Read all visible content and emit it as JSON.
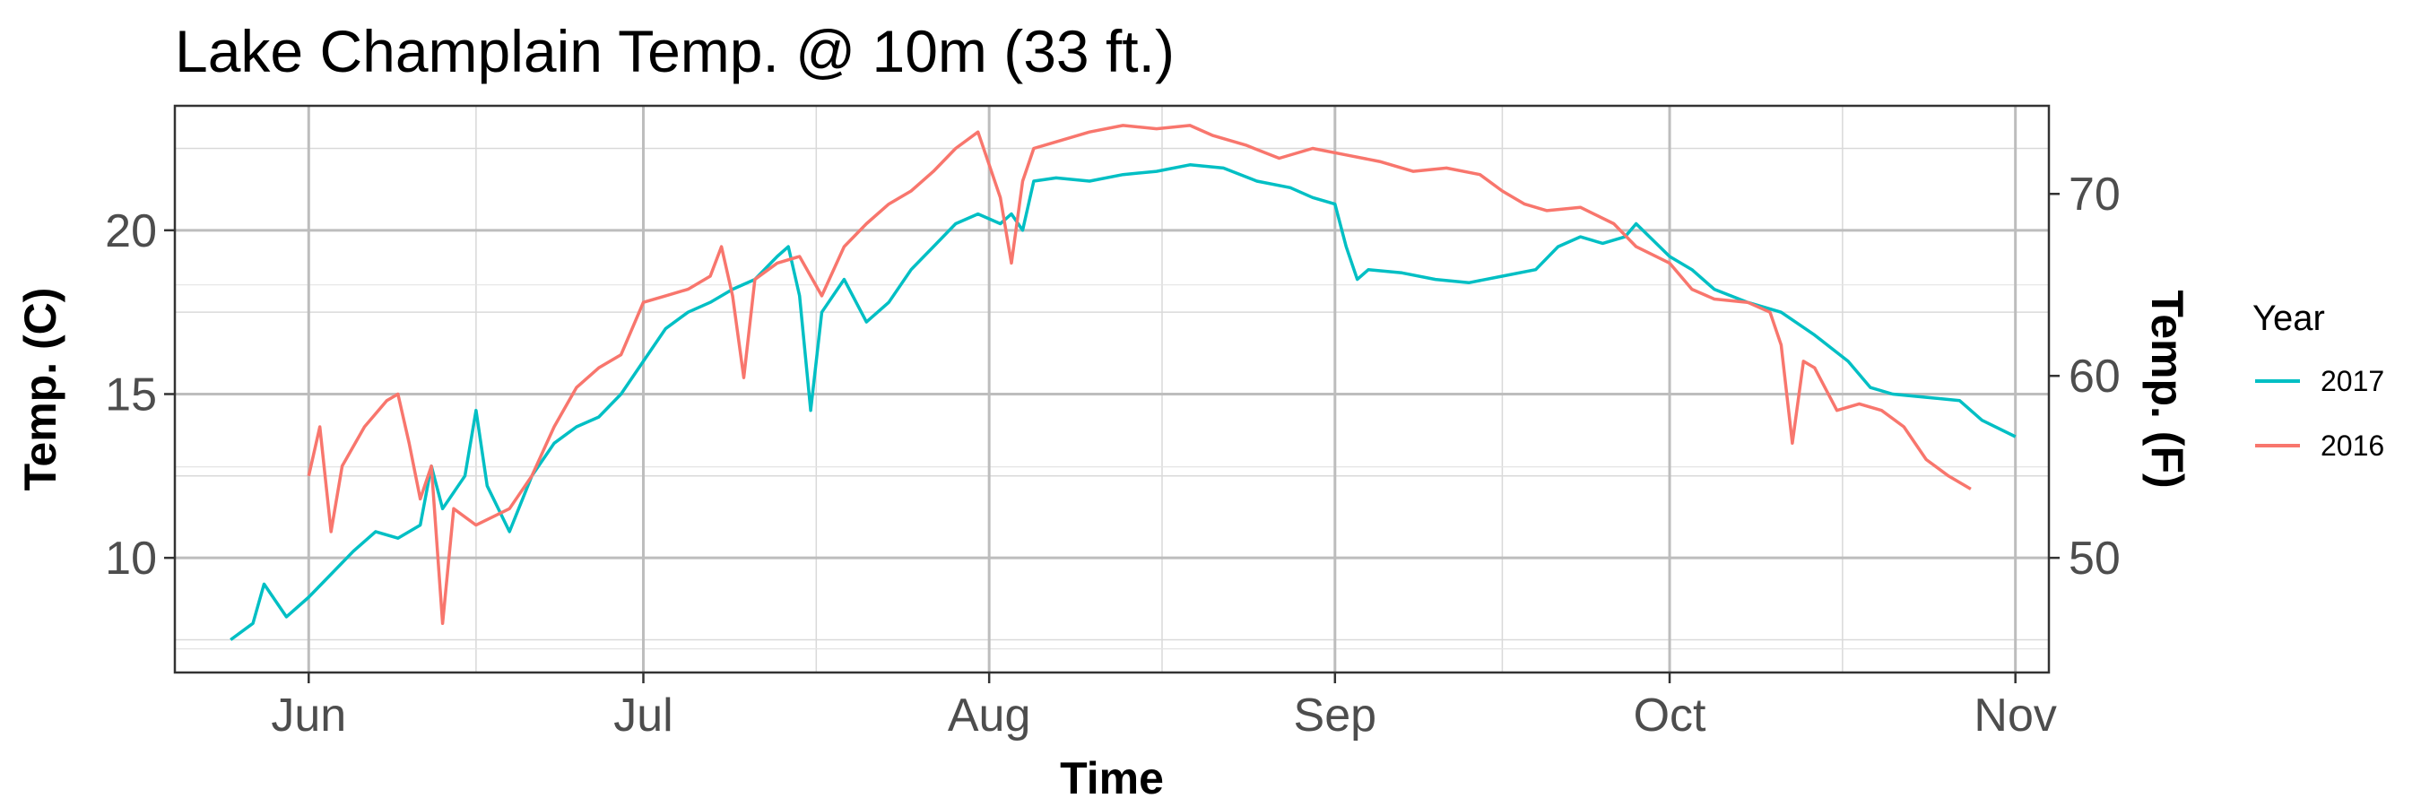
{
  "chart_data": {
    "type": "line",
    "title": "Lake Champlain Temp. @ 10m (33 ft.)",
    "xlabel": "Time",
    "ylabel": "Temp. (C)",
    "y2label": "Temp. (F)",
    "xlim": [
      "2017-05-20",
      "2017-11-04"
    ],
    "ylim": [
      6.5,
      23.8
    ],
    "y2_ticks": [
      50,
      60,
      70
    ],
    "x_ticks": [
      {
        "date": "2017-06-01",
        "label": "Jun"
      },
      {
        "date": "2017-07-01",
        "label": "Jul"
      },
      {
        "date": "2017-08-01",
        "label": "Aug"
      },
      {
        "date": "2017-09-01",
        "label": "Sep"
      },
      {
        "date": "2017-10-01",
        "label": "Oct"
      },
      {
        "date": "2017-11-01",
        "label": "Nov"
      }
    ],
    "y_ticks": [
      10,
      15,
      20
    ],
    "grid": true,
    "legend": {
      "title": "Year",
      "position": "right"
    },
    "series": [
      {
        "name": "2017",
        "color": "#00BFC4",
        "points": [
          [
            "2017-05-25",
            7.5
          ],
          [
            "2017-05-27",
            8.0
          ],
          [
            "2017-05-28",
            9.2
          ],
          [
            "2017-05-30",
            8.2
          ],
          [
            "2017-06-01",
            8.8
          ],
          [
            "2017-06-03",
            9.5
          ],
          [
            "2017-06-05",
            10.2
          ],
          [
            "2017-06-07",
            10.8
          ],
          [
            "2017-06-09",
            10.6
          ],
          [
            "2017-06-11",
            11.0
          ],
          [
            "2017-06-12",
            12.8
          ],
          [
            "2017-06-13",
            11.5
          ],
          [
            "2017-06-15",
            12.5
          ],
          [
            "2017-06-16",
            14.5
          ],
          [
            "2017-06-17",
            12.2
          ],
          [
            "2017-06-19",
            10.8
          ],
          [
            "2017-06-21",
            12.5
          ],
          [
            "2017-06-23",
            13.5
          ],
          [
            "2017-06-25",
            14.0
          ],
          [
            "2017-06-27",
            14.3
          ],
          [
            "2017-06-29",
            15.0
          ],
          [
            "2017-07-01",
            16.0
          ],
          [
            "2017-07-03",
            17.0
          ],
          [
            "2017-07-05",
            17.5
          ],
          [
            "2017-07-07",
            17.8
          ],
          [
            "2017-07-09",
            18.2
          ],
          [
            "2017-07-11",
            18.5
          ],
          [
            "2017-07-13",
            19.2
          ],
          [
            "2017-07-14",
            19.5
          ],
          [
            "2017-07-15",
            18.0
          ],
          [
            "2017-07-16",
            14.5
          ],
          [
            "2017-07-17",
            17.5
          ],
          [
            "2017-07-19",
            18.5
          ],
          [
            "2017-07-21",
            17.2
          ],
          [
            "2017-07-23",
            17.8
          ],
          [
            "2017-07-25",
            18.8
          ],
          [
            "2017-07-27",
            19.5
          ],
          [
            "2017-07-29",
            20.2
          ],
          [
            "2017-07-31",
            20.5
          ],
          [
            "2017-08-02",
            20.2
          ],
          [
            "2017-08-03",
            20.5
          ],
          [
            "2017-08-04",
            20.0
          ],
          [
            "2017-08-05",
            21.5
          ],
          [
            "2017-08-07",
            21.6
          ],
          [
            "2017-08-10",
            21.5
          ],
          [
            "2017-08-13",
            21.7
          ],
          [
            "2017-08-16",
            21.8
          ],
          [
            "2017-08-19",
            22.0
          ],
          [
            "2017-08-22",
            21.9
          ],
          [
            "2017-08-25",
            21.5
          ],
          [
            "2017-08-28",
            21.3
          ],
          [
            "2017-08-30",
            21.0
          ],
          [
            "2017-09-01",
            20.8
          ],
          [
            "2017-09-02",
            19.5
          ],
          [
            "2017-09-03",
            18.5
          ],
          [
            "2017-09-04",
            18.8
          ],
          [
            "2017-09-07",
            18.7
          ],
          [
            "2017-09-10",
            18.5
          ],
          [
            "2017-09-13",
            18.4
          ],
          [
            "2017-09-16",
            18.6
          ],
          [
            "2017-09-19",
            18.8
          ],
          [
            "2017-09-21",
            19.5
          ],
          [
            "2017-09-23",
            19.8
          ],
          [
            "2017-09-25",
            19.6
          ],
          [
            "2017-09-27",
            19.8
          ],
          [
            "2017-09-28",
            20.2
          ],
          [
            "2017-10-01",
            19.2
          ],
          [
            "2017-10-03",
            18.8
          ],
          [
            "2017-10-05",
            18.2
          ],
          [
            "2017-10-08",
            17.8
          ],
          [
            "2017-10-11",
            17.5
          ],
          [
            "2017-10-14",
            16.8
          ],
          [
            "2017-10-17",
            16.0
          ],
          [
            "2017-10-19",
            15.2
          ],
          [
            "2017-10-21",
            15.0
          ],
          [
            "2017-10-24",
            14.9
          ],
          [
            "2017-10-27",
            14.8
          ],
          [
            "2017-10-29",
            14.2
          ],
          [
            "2017-11-01",
            13.7
          ]
        ]
      },
      {
        "name": "2016",
        "color": "#F8766D",
        "points": [
          [
            "2017-06-01",
            12.5
          ],
          [
            "2017-06-02",
            14.0
          ],
          [
            "2017-06-03",
            10.8
          ],
          [
            "2017-06-04",
            12.8
          ],
          [
            "2017-06-06",
            14.0
          ],
          [
            "2017-06-08",
            14.8
          ],
          [
            "2017-06-09",
            15.0
          ],
          [
            "2017-06-10",
            13.5
          ],
          [
            "2017-06-11",
            11.8
          ],
          [
            "2017-06-12",
            12.8
          ],
          [
            "2017-06-13",
            8.0
          ],
          [
            "2017-06-14",
            11.5
          ],
          [
            "2017-06-16",
            11.0
          ],
          [
            "2017-06-19",
            11.5
          ],
          [
            "2017-06-21",
            12.5
          ],
          [
            "2017-06-23",
            14.0
          ],
          [
            "2017-06-25",
            15.2
          ],
          [
            "2017-06-27",
            15.8
          ],
          [
            "2017-06-29",
            16.2
          ],
          [
            "2017-07-01",
            17.8
          ],
          [
            "2017-07-03",
            18.0
          ],
          [
            "2017-07-05",
            18.2
          ],
          [
            "2017-07-07",
            18.6
          ],
          [
            "2017-07-08",
            19.5
          ],
          [
            "2017-07-09",
            18.0
          ],
          [
            "2017-07-10",
            15.5
          ],
          [
            "2017-07-11",
            18.5
          ],
          [
            "2017-07-13",
            19.0
          ],
          [
            "2017-07-15",
            19.2
          ],
          [
            "2017-07-17",
            18.0
          ],
          [
            "2017-07-19",
            19.5
          ],
          [
            "2017-07-21",
            20.2
          ],
          [
            "2017-07-23",
            20.8
          ],
          [
            "2017-07-25",
            21.2
          ],
          [
            "2017-07-27",
            21.8
          ],
          [
            "2017-07-29",
            22.5
          ],
          [
            "2017-07-31",
            23.0
          ],
          [
            "2017-08-01",
            22.0
          ],
          [
            "2017-08-02",
            21.0
          ],
          [
            "2017-08-03",
            19.0
          ],
          [
            "2017-08-04",
            21.5
          ],
          [
            "2017-08-05",
            22.5
          ],
          [
            "2017-08-07",
            22.7
          ],
          [
            "2017-08-10",
            23.0
          ],
          [
            "2017-08-13",
            23.2
          ],
          [
            "2017-08-16",
            23.1
          ],
          [
            "2017-08-19",
            23.2
          ],
          [
            "2017-08-21",
            22.9
          ],
          [
            "2017-08-24",
            22.6
          ],
          [
            "2017-08-27",
            22.2
          ],
          [
            "2017-08-30",
            22.5
          ],
          [
            "2017-09-02",
            22.3
          ],
          [
            "2017-09-05",
            22.1
          ],
          [
            "2017-09-08",
            21.8
          ],
          [
            "2017-09-11",
            21.9
          ],
          [
            "2017-09-14",
            21.7
          ],
          [
            "2017-09-16",
            21.2
          ],
          [
            "2017-09-18",
            20.8
          ],
          [
            "2017-09-20",
            20.6
          ],
          [
            "2017-09-23",
            20.7
          ],
          [
            "2017-09-26",
            20.2
          ],
          [
            "2017-09-28",
            19.5
          ],
          [
            "2017-10-01",
            19.0
          ],
          [
            "2017-10-03",
            18.2
          ],
          [
            "2017-10-05",
            17.9
          ],
          [
            "2017-10-08",
            17.8
          ],
          [
            "2017-10-10",
            17.5
          ],
          [
            "2017-10-11",
            16.5
          ],
          [
            "2017-10-12",
            13.5
          ],
          [
            "2017-10-13",
            16.0
          ],
          [
            "2017-10-14",
            15.8
          ],
          [
            "2017-10-16",
            14.5
          ],
          [
            "2017-10-18",
            14.7
          ],
          [
            "2017-10-20",
            14.5
          ],
          [
            "2017-10-22",
            14.0
          ],
          [
            "2017-10-24",
            13.0
          ],
          [
            "2017-10-26",
            12.5
          ],
          [
            "2017-10-28",
            12.1
          ]
        ]
      }
    ]
  }
}
